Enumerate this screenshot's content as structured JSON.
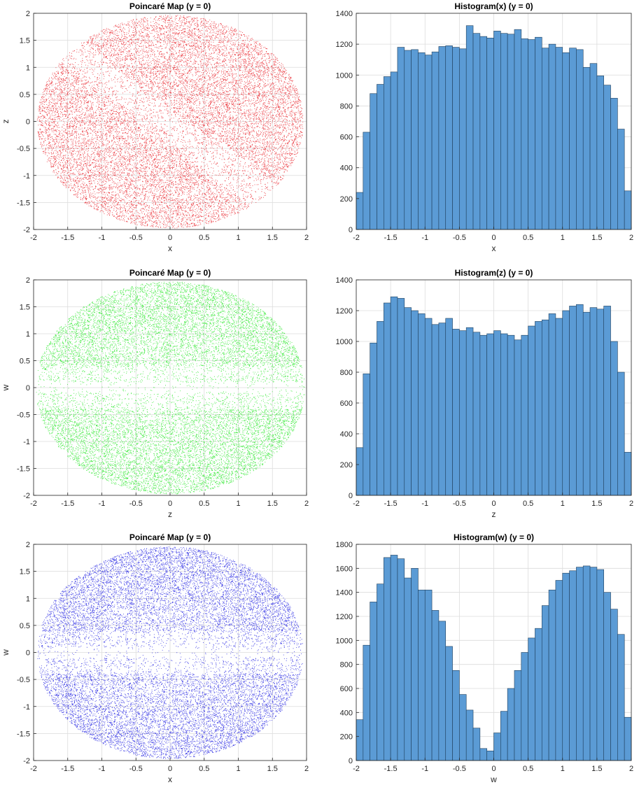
{
  "chart_data": [
    {
      "type": "scatter",
      "title": "Poincaré Map (y = 0)",
      "xlabel": "x",
      "ylabel": "z",
      "xlim": [
        -2,
        2
      ],
      "ylim": [
        -2,
        2
      ],
      "xticks": [
        "-2",
        "-1.5",
        "-1",
        "-0.5",
        "0",
        "0.5",
        "1",
        "1.5",
        "2"
      ],
      "yticks": [
        "-2",
        "-1.5",
        "-1",
        "-0.5",
        "0",
        "0.5",
        "1",
        "1.5",
        "2"
      ],
      "grid": true,
      "color": "#e8141c",
      "point_cloud": {
        "shape": "ellipse",
        "center": [
          0,
          0
        ],
        "radii": [
          1.95,
          1.97
        ],
        "sparse_band": "diagonal from (-1, 1) to (1.5, -1.5)",
        "points_approx": 40000
      }
    },
    {
      "type": "bar",
      "title": "Histogram(x) (y = 0)",
      "xlabel": "x",
      "ylabel": "",
      "xlim": [
        -2,
        2
      ],
      "ylim": [
        0,
        1400
      ],
      "xticks": [
        "-2",
        "-1.5",
        "-1",
        "-0.5",
        "0",
        "0.5",
        "1",
        "1.5",
        "2"
      ],
      "yticks": [
        "0",
        "200",
        "400",
        "600",
        "800",
        "1000",
        "1200",
        "1400"
      ],
      "grid": true,
      "color": "#5b9bd5",
      "bin_width": 0.1,
      "x": [
        -1.95,
        -1.85,
        -1.75,
        -1.65,
        -1.55,
        -1.45,
        -1.35,
        -1.25,
        -1.15,
        -1.05,
        -0.95,
        -0.85,
        -0.75,
        -0.65,
        -0.55,
        -0.45,
        -0.35,
        -0.25,
        -0.15,
        -0.05,
        0.05,
        0.15,
        0.25,
        0.35,
        0.45,
        0.55,
        0.65,
        0.75,
        0.85,
        0.95,
        1.05,
        1.15,
        1.25,
        1.35,
        1.45,
        1.55,
        1.65,
        1.75,
        1.85,
        1.95
      ],
      "values": [
        240,
        630,
        880,
        940,
        990,
        1020,
        1180,
        1160,
        1165,
        1145,
        1130,
        1150,
        1185,
        1190,
        1180,
        1170,
        1320,
        1270,
        1250,
        1240,
        1285,
        1270,
        1265,
        1295,
        1235,
        1230,
        1245,
        1175,
        1200,
        1180,
        1145,
        1175,
        1165,
        1050,
        1075,
        995,
        935,
        850,
        650,
        250
      ]
    },
    {
      "type": "scatter",
      "title": "Poincaré Map (y = 0)",
      "xlabel": "z",
      "ylabel": "w",
      "xlim": [
        -2,
        2
      ],
      "ylim": [
        -2,
        2
      ],
      "xticks": [
        "-2",
        "-1.5",
        "-1",
        "-0.5",
        "0",
        "0.5",
        "1",
        "1.5",
        "2"
      ],
      "yticks": [
        "-2",
        "-1.5",
        "-1",
        "-0.5",
        "0",
        "0.5",
        "1",
        "1.5",
        "2"
      ],
      "grid": true,
      "color": "#1ee61e",
      "point_cloud": {
        "shape": "ellipse",
        "center": [
          0,
          0
        ],
        "radii": [
          1.97,
          1.97
        ],
        "sparse_band": "horizontal near w = 0",
        "points_approx": 40000
      }
    },
    {
      "type": "bar",
      "title": "Histogram(z) (y = 0)",
      "xlabel": "z",
      "ylabel": "",
      "xlim": [
        -2,
        2
      ],
      "ylim": [
        0,
        1400
      ],
      "xticks": [
        "-2",
        "-1.5",
        "-1",
        "-0.5",
        "0",
        "0.5",
        "1",
        "1.5",
        "2"
      ],
      "yticks": [
        "0",
        "200",
        "400",
        "600",
        "800",
        "1000",
        "1200",
        "1400"
      ],
      "grid": true,
      "color": "#5b9bd5",
      "bin_width": 0.1,
      "x": [
        -1.95,
        -1.85,
        -1.75,
        -1.65,
        -1.55,
        -1.45,
        -1.35,
        -1.25,
        -1.15,
        -1.05,
        -0.95,
        -0.85,
        -0.75,
        -0.65,
        -0.55,
        -0.45,
        -0.35,
        -0.25,
        -0.15,
        -0.05,
        0.05,
        0.15,
        0.25,
        0.35,
        0.45,
        0.55,
        0.65,
        0.75,
        0.85,
        0.95,
        1.05,
        1.15,
        1.25,
        1.35,
        1.45,
        1.55,
        1.65,
        1.75,
        1.85,
        1.95
      ],
      "values": [
        310,
        790,
        990,
        1130,
        1250,
        1290,
        1280,
        1220,
        1200,
        1180,
        1150,
        1110,
        1120,
        1150,
        1080,
        1070,
        1090,
        1060,
        1040,
        1050,
        1070,
        1050,
        1040,
        1010,
        1040,
        1100,
        1130,
        1140,
        1180,
        1150,
        1200,
        1230,
        1240,
        1190,
        1220,
        1210,
        1230,
        1000,
        800,
        280
      ]
    },
    {
      "type": "scatter",
      "title": "Poincaré Map (y = 0)",
      "xlabel": "x",
      "ylabel": "w",
      "xlim": [
        -2,
        2
      ],
      "ylim": [
        -2,
        2
      ],
      "xticks": [
        "-2",
        "-1.5",
        "-1",
        "-0.5",
        "0",
        "0.5",
        "1",
        "1.5",
        "2"
      ],
      "yticks": [
        "-2",
        "-1.5",
        "-1",
        "-0.5",
        "0",
        "0.5",
        "1",
        "1.5",
        "2"
      ],
      "grid": true,
      "color": "#1616e0",
      "point_cloud": {
        "shape": "ellipse",
        "center": [
          0,
          0
        ],
        "radii": [
          1.95,
          1.96
        ],
        "sparse_band": "horizontal near w = 0",
        "points_approx": 40000
      }
    },
    {
      "type": "bar",
      "title": "Histogram(w) (y = 0)",
      "xlabel": "w",
      "ylabel": "",
      "xlim": [
        -2,
        2
      ],
      "ylim": [
        0,
        1800
      ],
      "xticks": [
        "-2",
        "-1.5",
        "-1",
        "-0.5",
        "0",
        "0.5",
        "1",
        "1.5",
        "2"
      ],
      "yticks": [
        "0",
        "200",
        "400",
        "600",
        "800",
        "1000",
        "1200",
        "1400",
        "1600",
        "1800"
      ],
      "grid": true,
      "color": "#5b9bd5",
      "bin_width": 0.1,
      "x": [
        -1.95,
        -1.85,
        -1.75,
        -1.65,
        -1.55,
        -1.45,
        -1.35,
        -1.25,
        -1.15,
        -1.05,
        -0.95,
        -0.85,
        -0.75,
        -0.65,
        -0.55,
        -0.45,
        -0.35,
        -0.25,
        -0.15,
        -0.05,
        0.05,
        0.15,
        0.25,
        0.35,
        0.45,
        0.55,
        0.65,
        0.75,
        0.85,
        0.95,
        1.05,
        1.15,
        1.25,
        1.35,
        1.45,
        1.55,
        1.65,
        1.75,
        1.85,
        1.95
      ],
      "values": [
        340,
        960,
        1320,
        1470,
        1690,
        1710,
        1680,
        1520,
        1600,
        1420,
        1420,
        1250,
        1160,
        950,
        750,
        550,
        420,
        270,
        100,
        80,
        230,
        410,
        600,
        750,
        900,
        1020,
        1100,
        1290,
        1420,
        1500,
        1560,
        1580,
        1610,
        1620,
        1610,
        1590,
        1400,
        1260,
        1050,
        360
      ]
    }
  ]
}
